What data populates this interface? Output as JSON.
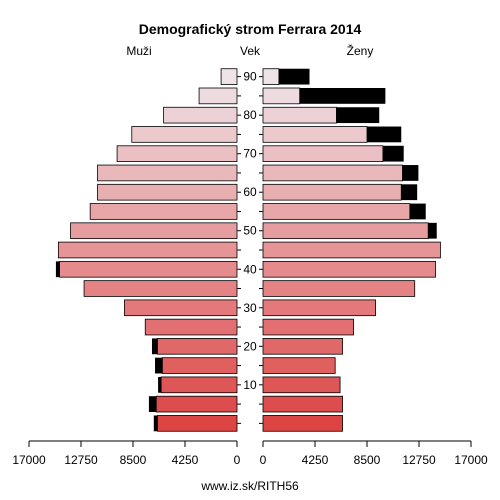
{
  "chart_data": {
    "type": "bar",
    "title": "Demografický strom Ferrara 2014",
    "left_label": "Muži",
    "center_label": "Vek",
    "right_label": "Ženy",
    "footer": "www.iz.sk/RITH56",
    "xlim": [
      0,
      17000
    ],
    "x_ticks": [
      "17000",
      "12750",
      "8500",
      "4250",
      "0",
      "4250",
      "8500",
      "12750",
      "17000"
    ],
    "y_ticks": [
      "10",
      "20",
      "30",
      "40",
      "50",
      "60",
      "70",
      "80",
      "90"
    ],
    "categories": [
      "0",
      "5",
      "10",
      "15",
      "20",
      "25",
      "30",
      "35",
      "40",
      "45",
      "50",
      "55",
      "60",
      "65",
      "70",
      "75",
      "80",
      "85",
      "90"
    ],
    "series": [
      {
        "name": "Muži",
        "values": [
          6500,
          6600,
          6200,
          6100,
          6500,
          7500,
          9200,
          12500,
          14500,
          14600,
          13600,
          12000,
          11400,
          11400,
          9800,
          8600,
          6000,
          3100,
          1300
        ]
      },
      {
        "name": "Muži extra",
        "values": [
          300,
          600,
          250,
          600,
          450,
          0,
          0,
          0,
          300,
          0,
          0,
          0,
          0,
          0,
          0,
          0,
          0,
          0,
          0
        ]
      },
      {
        "name": "Ženy",
        "values": [
          6500,
          6500,
          6300,
          5900,
          6500,
          7400,
          9200,
          12400,
          14100,
          14500,
          13500,
          12000,
          11300,
          11400,
          9800,
          8500,
          6000,
          3000,
          1300
        ]
      },
      {
        "name": "Ženy extra",
        "values": [
          0,
          0,
          0,
          0,
          0,
          0,
          0,
          0,
          0,
          0,
          700,
          1300,
          1300,
          1300,
          1700,
          2800,
          3500,
          7000,
          2500
        ]
      }
    ],
    "colors": {
      "young": "#dd4444",
      "old": "#eee4e8",
      "excess": "#000000"
    }
  }
}
